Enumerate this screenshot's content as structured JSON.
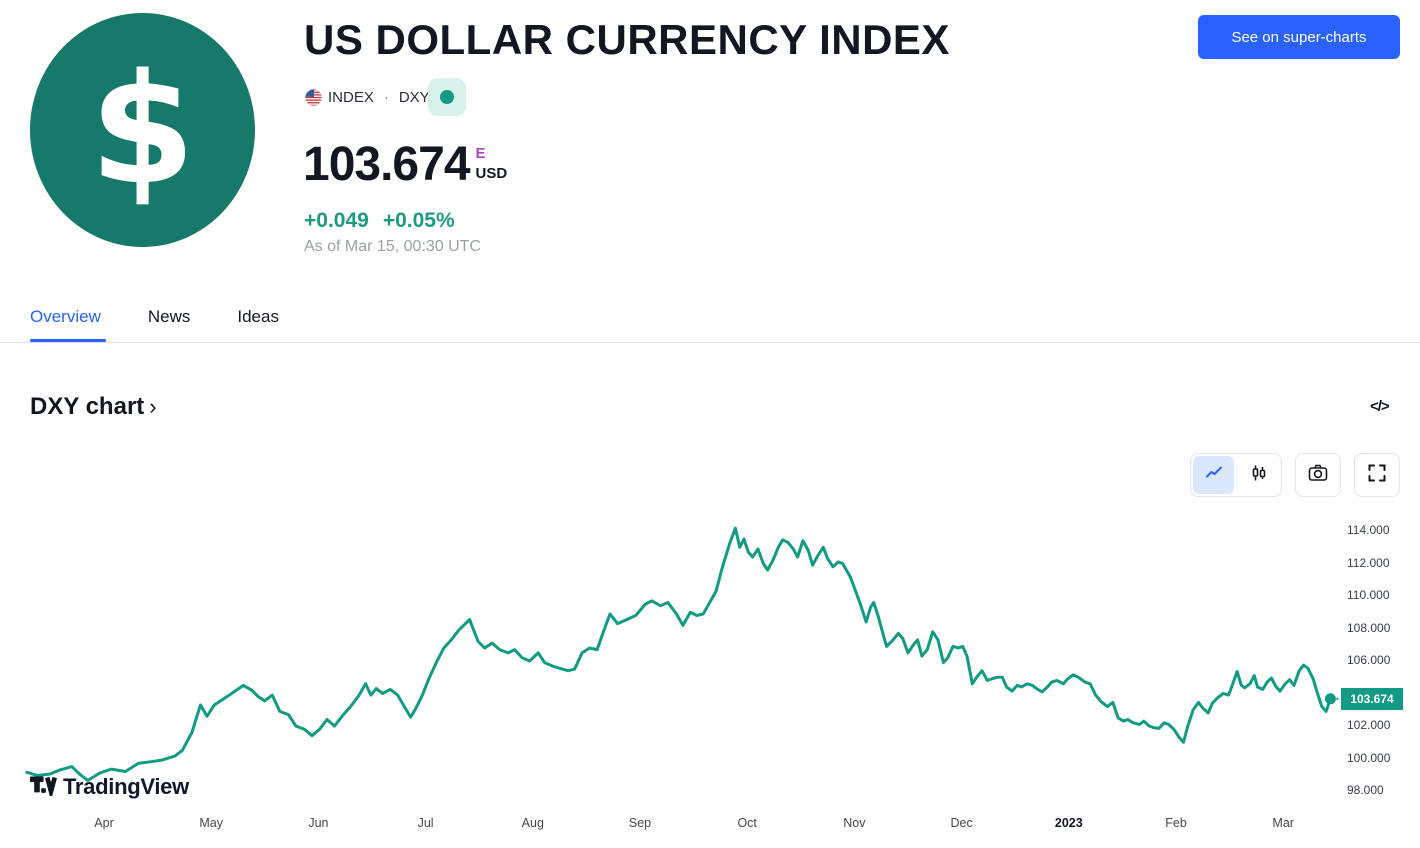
{
  "header": {
    "title": "US DOLLAR CURRENCY INDEX",
    "symbol_type": "INDEX",
    "separator": "·",
    "symbol": "DXY",
    "market_status": "open",
    "price": "103.674",
    "price_flag": "E",
    "currency": "USD",
    "change_abs": "+0.049",
    "change_pct": "+0.05%",
    "as_of": "As of Mar 15, 00:30 UTC",
    "supercharts_button": "See on super-charts"
  },
  "tabs": [
    {
      "label": "Overview",
      "active": true
    },
    {
      "label": "News",
      "active": false
    },
    {
      "label": "Ideas",
      "active": false
    }
  ],
  "section": {
    "title": "DXY chart"
  },
  "icons": {
    "dollar": "$",
    "chevron_right": "›",
    "embed_code": "</>",
    "toolbar": [
      "line-chart-icon",
      "candlestick-icon",
      "camera-icon",
      "fullscreen-icon"
    ]
  },
  "watermark": {
    "text": "TradingView"
  },
  "colors": {
    "accent_blue": "#2962ff",
    "line_teal": "#129a82",
    "change_green": "#1d9a80",
    "logo_circle_teal": "#17796a",
    "status_badge_mint": "#d8f1ea",
    "price_flag_purple": "#ab47bc",
    "text_dark": "#131722",
    "text_gray": "#9aa0a6",
    "border_gray": "#e0e3eb"
  },
  "chart_data": {
    "type": "line",
    "title": "DXY chart",
    "x_unit": "months since Apr tick (Apr 2022 = 0, Mar 2023 = 11)",
    "x_axis": {
      "months": [
        {
          "label": "Apr",
          "bold": false
        },
        {
          "label": "May",
          "bold": false
        },
        {
          "label": "Jun",
          "bold": false
        },
        {
          "label": "Jul",
          "bold": false
        },
        {
          "label": "Aug",
          "bold": false
        },
        {
          "label": "Sep",
          "bold": false
        },
        {
          "label": "Oct",
          "bold": false
        },
        {
          "label": "Nov",
          "bold": false
        },
        {
          "label": "Dec",
          "bold": false
        },
        {
          "label": "2023",
          "bold": true
        },
        {
          "label": "Feb",
          "bold": false
        },
        {
          "label": "Mar",
          "bold": false
        }
      ]
    },
    "y_axis": {
      "ticks": [
        {
          "value": 114,
          "label": "114.000"
        },
        {
          "value": 112,
          "label": "112.000"
        },
        {
          "value": 110,
          "label": "110.000"
        },
        {
          "value": 108,
          "label": "108.000"
        },
        {
          "value": 106,
          "label": "106.000"
        },
        {
          "value": 104,
          "label": "104.000"
        },
        {
          "value": 102,
          "label": "102.000"
        },
        {
          "value": 100,
          "label": "100.000"
        },
        {
          "value": 98,
          "label": "98.000"
        }
      ],
      "range": [
        97.5,
        115
      ]
    },
    "last_price": 103.674,
    "last_price_label": "103.674",
    "points": [
      [
        -0.72,
        99.15
      ],
      [
        -0.62,
        98.95
      ],
      [
        -0.5,
        99.05
      ],
      [
        -0.41,
        99.3
      ],
      [
        -0.3,
        99.5
      ],
      [
        -0.22,
        99.0
      ],
      [
        -0.15,
        98.65
      ],
      [
        -0.04,
        99.1
      ],
      [
        0.07,
        99.35
      ],
      [
        0.2,
        99.2
      ],
      [
        0.32,
        99.7
      ],
      [
        0.43,
        99.8
      ],
      [
        0.54,
        99.9
      ],
      [
        0.66,
        100.15
      ],
      [
        0.73,
        100.5
      ],
      [
        0.82,
        101.6
      ],
      [
        0.9,
        103.3
      ],
      [
        0.96,
        102.6
      ],
      [
        1.03,
        103.3
      ],
      [
        1.1,
        103.6
      ],
      [
        1.19,
        104.0
      ],
      [
        1.3,
        104.5
      ],
      [
        1.38,
        104.2
      ],
      [
        1.44,
        103.8
      ],
      [
        1.5,
        103.55
      ],
      [
        1.57,
        103.9
      ],
      [
        1.64,
        102.9
      ],
      [
        1.72,
        102.7
      ],
      [
        1.79,
        102.0
      ],
      [
        1.87,
        101.8
      ],
      [
        1.94,
        101.4
      ],
      [
        2.01,
        101.8
      ],
      [
        2.08,
        102.4
      ],
      [
        2.15,
        102.0
      ],
      [
        2.22,
        102.6
      ],
      [
        2.3,
        103.2
      ],
      [
        2.38,
        103.9
      ],
      [
        2.44,
        104.6
      ],
      [
        2.49,
        103.9
      ],
      [
        2.54,
        104.3
      ],
      [
        2.6,
        104.0
      ],
      [
        2.67,
        104.25
      ],
      [
        2.74,
        103.9
      ],
      [
        2.81,
        103.1
      ],
      [
        2.86,
        102.55
      ],
      [
        2.91,
        103.1
      ],
      [
        2.97,
        103.9
      ],
      [
        3.03,
        104.9
      ],
      [
        3.1,
        105.9
      ],
      [
        3.17,
        106.8
      ],
      [
        3.24,
        107.3
      ],
      [
        3.31,
        107.9
      ],
      [
        3.41,
        108.55
      ],
      [
        3.49,
        107.2
      ],
      [
        3.55,
        106.8
      ],
      [
        3.62,
        107.1
      ],
      [
        3.69,
        106.7
      ],
      [
        3.77,
        106.5
      ],
      [
        3.83,
        106.7
      ],
      [
        3.9,
        106.2
      ],
      [
        3.97,
        106.0
      ],
      [
        4.05,
        106.5
      ],
      [
        4.11,
        105.9
      ],
      [
        4.18,
        105.7
      ],
      [
        4.25,
        105.55
      ],
      [
        4.33,
        105.4
      ],
      [
        4.39,
        105.5
      ],
      [
        4.46,
        106.5
      ],
      [
        4.53,
        106.8
      ],
      [
        4.6,
        106.7
      ],
      [
        4.67,
        108.0
      ],
      [
        4.72,
        108.9
      ],
      [
        4.79,
        108.3
      ],
      [
        4.86,
        108.5
      ],
      [
        4.96,
        108.8
      ],
      [
        5.05,
        109.5
      ],
      [
        5.11,
        109.7
      ],
      [
        5.19,
        109.4
      ],
      [
        5.26,
        109.6
      ],
      [
        5.34,
        108.9
      ],
      [
        5.4,
        108.2
      ],
      [
        5.47,
        109.0
      ],
      [
        5.53,
        108.8
      ],
      [
        5.59,
        108.9
      ],
      [
        5.65,
        109.6
      ],
      [
        5.71,
        110.3
      ],
      [
        5.77,
        111.8
      ],
      [
        5.84,
        113.3
      ],
      [
        5.89,
        114.17
      ],
      [
        5.93,
        113.0
      ],
      [
        5.97,
        113.5
      ],
      [
        6.01,
        112.7
      ],
      [
        6.05,
        112.4
      ],
      [
        6.1,
        112.9
      ],
      [
        6.15,
        112.0
      ],
      [
        6.19,
        111.6
      ],
      [
        6.24,
        112.2
      ],
      [
        6.29,
        113.0
      ],
      [
        6.33,
        113.45
      ],
      [
        6.38,
        113.3
      ],
      [
        6.43,
        112.9
      ],
      [
        6.47,
        112.4
      ],
      [
        6.52,
        113.4
      ],
      [
        6.57,
        112.8
      ],
      [
        6.61,
        111.9
      ],
      [
        6.66,
        112.5
      ],
      [
        6.71,
        113.0
      ],
      [
        6.75,
        112.3
      ],
      [
        6.8,
        111.8
      ],
      [
        6.85,
        112.1
      ],
      [
        6.89,
        112.0
      ],
      [
        6.96,
        111.2
      ],
      [
        7.0,
        110.5
      ],
      [
        7.05,
        109.6
      ],
      [
        7.11,
        108.4
      ],
      [
        7.15,
        109.3
      ],
      [
        7.18,
        109.6
      ],
      [
        7.22,
        108.8
      ],
      [
        7.27,
        107.6
      ],
      [
        7.3,
        106.9
      ],
      [
        7.36,
        107.3
      ],
      [
        7.41,
        107.7
      ],
      [
        7.45,
        107.4
      ],
      [
        7.5,
        106.5
      ],
      [
        7.55,
        107.0
      ],
      [
        7.59,
        107.3
      ],
      [
        7.63,
        106.3
      ],
      [
        7.68,
        106.7
      ],
      [
        7.73,
        107.8
      ],
      [
        7.78,
        107.3
      ],
      [
        7.83,
        105.9
      ],
      [
        7.87,
        106.2
      ],
      [
        7.92,
        106.9
      ],
      [
        7.97,
        106.8
      ],
      [
        8.01,
        106.9
      ],
      [
        8.05,
        106.3
      ],
      [
        8.1,
        104.6
      ],
      [
        8.14,
        105.0
      ],
      [
        8.19,
        105.4
      ],
      [
        8.24,
        104.8
      ],
      [
        8.28,
        104.9
      ],
      [
        8.33,
        105.0
      ],
      [
        8.38,
        105.0
      ],
      [
        8.42,
        104.4
      ],
      [
        8.47,
        104.15
      ],
      [
        8.52,
        104.5
      ],
      [
        8.56,
        104.4
      ],
      [
        8.61,
        104.6
      ],
      [
        8.66,
        104.5
      ],
      [
        8.7,
        104.3
      ],
      [
        8.75,
        104.1
      ],
      [
        8.8,
        104.4
      ],
      [
        8.84,
        104.7
      ],
      [
        8.89,
        104.8
      ],
      [
        8.95,
        104.6
      ],
      [
        8.99,
        104.9
      ],
      [
        9.04,
        105.15
      ],
      [
        9.09,
        105.0
      ],
      [
        9.15,
        104.7
      ],
      [
        9.2,
        104.6
      ],
      [
        9.25,
        103.9
      ],
      [
        9.3,
        103.5
      ],
      [
        9.36,
        103.2
      ],
      [
        9.41,
        103.45
      ],
      [
        9.46,
        102.5
      ],
      [
        9.51,
        102.3
      ],
      [
        9.55,
        102.4
      ],
      [
        9.6,
        102.2
      ],
      [
        9.66,
        102.1
      ],
      [
        9.7,
        102.3
      ],
      [
        9.75,
        102.0
      ],
      [
        9.79,
        101.9
      ],
      [
        9.84,
        101.85
      ],
      [
        9.89,
        102.2
      ],
      [
        9.93,
        102.1
      ],
      [
        9.98,
        101.8
      ],
      [
        10.03,
        101.3
      ],
      [
        10.07,
        101.0
      ],
      [
        10.11,
        102.0
      ],
      [
        10.16,
        103.0
      ],
      [
        10.21,
        103.45
      ],
      [
        10.25,
        103.1
      ],
      [
        10.3,
        102.8
      ],
      [
        10.34,
        103.4
      ],
      [
        10.39,
        103.75
      ],
      [
        10.44,
        104.0
      ],
      [
        10.49,
        103.9
      ],
      [
        10.53,
        104.6
      ],
      [
        10.57,
        105.35
      ],
      [
        10.61,
        104.5
      ],
      [
        10.64,
        104.35
      ],
      [
        10.69,
        104.6
      ],
      [
        10.73,
        105.1
      ],
      [
        10.76,
        104.4
      ],
      [
        10.81,
        104.25
      ],
      [
        10.85,
        104.7
      ],
      [
        10.89,
        104.95
      ],
      [
        10.93,
        104.45
      ],
      [
        10.97,
        104.15
      ],
      [
        11.02,
        104.6
      ],
      [
        11.06,
        104.85
      ],
      [
        11.1,
        104.5
      ],
      [
        11.15,
        105.4
      ],
      [
        11.19,
        105.75
      ],
      [
        11.23,
        105.55
      ],
      [
        11.28,
        104.9
      ],
      [
        11.32,
        104.0
      ],
      [
        11.36,
        103.2
      ],
      [
        11.4,
        102.9
      ],
      [
        11.44,
        103.674
      ]
    ]
  }
}
